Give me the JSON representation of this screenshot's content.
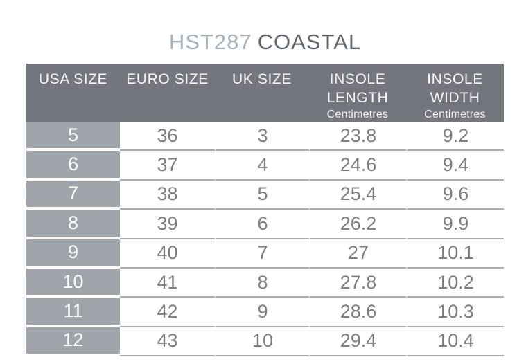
{
  "title": {
    "code": "HST287",
    "name": "COASTAL"
  },
  "table": {
    "columns": [
      {
        "line1": "USA SIZE",
        "line2": "",
        "sub": ""
      },
      {
        "line1": "EURO SIZE",
        "line2": "",
        "sub": ""
      },
      {
        "line1": "UK SIZE",
        "line2": "",
        "sub": ""
      },
      {
        "line1": "INSOLE",
        "line2": "LENGTH",
        "sub": "Centimetres"
      },
      {
        "line1": "INSOLE",
        "line2": "WIDTH",
        "sub": "Centimetres"
      }
    ],
    "column_keys": [
      "usa-size",
      "euro-size",
      "uk-size",
      "insole-length",
      "insole-width"
    ],
    "rows": [
      [
        "5",
        "36",
        "3",
        "23.8",
        "9.2"
      ],
      [
        "6",
        "37",
        "4",
        "24.6",
        "9.4"
      ],
      [
        "7",
        "38",
        "5",
        "25.4",
        "9.6"
      ],
      [
        "8",
        "39",
        "6",
        "26.2",
        "9.9"
      ],
      [
        "9",
        "40",
        "7",
        "27",
        "10.1"
      ],
      [
        "10",
        "41",
        "8",
        "27.8",
        "10.2"
      ],
      [
        "11",
        "42",
        "9",
        "28.6",
        "10.3"
      ],
      [
        "12",
        "43",
        "10",
        "29.4",
        "10.4"
      ]
    ]
  },
  "colors": {
    "header_bg": "#73767c",
    "usa_col_bg": "#a0a5ac",
    "row_line": "#a9aeb3",
    "data_text": "#7b7f84",
    "header_text": "#f7f8f8",
    "title_code": "#a3b1bb",
    "title_name": "#5d666e"
  }
}
